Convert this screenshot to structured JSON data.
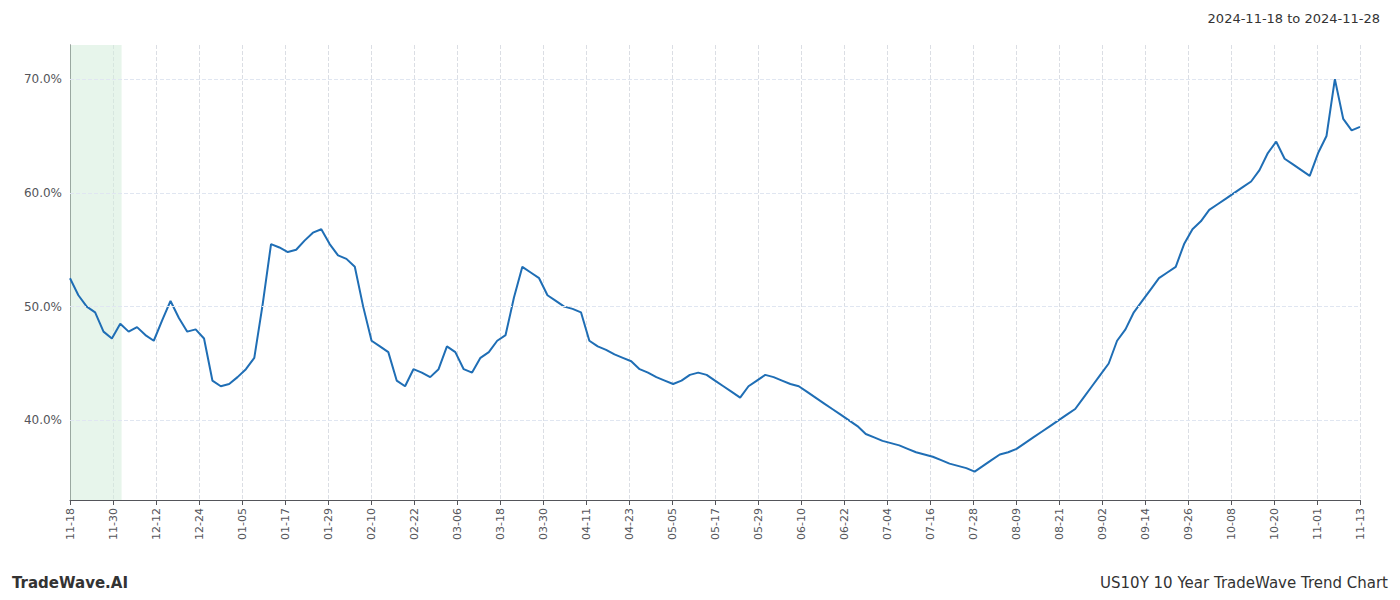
{
  "chart_data": {
    "type": "line",
    "annotations": [
      "2024-11-18 to 2024-11-28",
      "TradeWave.AI",
      "US10Y 10 Year TradeWave Trend Chart"
    ],
    "color": "#1f6eb5",
    "highlight_x": [
      0,
      1.2
    ],
    "highlight_color": "#d4edda",
    "xlim": [
      0,
      30
    ],
    "xticks": [
      {
        "value": 0,
        "label": "11-18"
      },
      {
        "value": 1,
        "label": "11-30"
      },
      {
        "value": 2,
        "label": "12-12"
      },
      {
        "value": 3,
        "label": "12-24"
      },
      {
        "value": 4,
        "label": "01-05"
      },
      {
        "value": 5,
        "label": "01-17"
      },
      {
        "value": 6,
        "label": "01-29"
      },
      {
        "value": 7,
        "label": "02-10"
      },
      {
        "value": 8,
        "label": "02-22"
      },
      {
        "value": 9,
        "label": "03-06"
      },
      {
        "value": 10,
        "label": "03-18"
      },
      {
        "value": 11,
        "label": "03-30"
      },
      {
        "value": 12,
        "label": "04-11"
      },
      {
        "value": 13,
        "label": "04-23"
      },
      {
        "value": 14,
        "label": "05-05"
      },
      {
        "value": 15,
        "label": "05-17"
      },
      {
        "value": 16,
        "label": "05-29"
      },
      {
        "value": 17,
        "label": "06-10"
      },
      {
        "value": 18,
        "label": "06-22"
      },
      {
        "value": 19,
        "label": "07-04"
      },
      {
        "value": 20,
        "label": "07-16"
      },
      {
        "value": 21,
        "label": "07-28"
      },
      {
        "value": 22,
        "label": "08-09"
      },
      {
        "value": 23,
        "label": "08-21"
      },
      {
        "value": 24,
        "label": "09-02"
      },
      {
        "value": 25,
        "label": "09-14"
      },
      {
        "value": 26,
        "label": "09-26"
      },
      {
        "value": 27,
        "label": "10-08"
      },
      {
        "value": 28,
        "label": "10-20"
      },
      {
        "value": 29,
        "label": "11-01"
      },
      {
        "value": 30,
        "label": "11-13"
      }
    ],
    "ylim": [
      33,
      73
    ],
    "yticks": [
      {
        "value": 40.0,
        "label": "40.0%"
      },
      {
        "value": 50.0,
        "label": "50.0%"
      },
      {
        "value": 60.0,
        "label": "60.0%"
      },
      {
        "value": 70.0,
        "label": "70.0%"
      }
    ],
    "grid": true,
    "values": [
      52.5,
      51.0,
      50.0,
      49.5,
      47.8,
      47.2,
      48.5,
      47.8,
      48.2,
      47.5,
      47.0,
      48.8,
      50.5,
      49.0,
      47.8,
      48.0,
      47.2,
      43.5,
      43.0,
      43.2,
      43.8,
      44.5,
      45.5,
      50.2,
      55.5,
      55.2,
      54.8,
      55.0,
      55.8,
      56.5,
      56.8,
      55.5,
      54.5,
      54.2,
      53.5,
      50.0,
      47.0,
      46.5,
      46.0,
      43.5,
      43.0,
      44.5,
      44.2,
      43.8,
      44.5,
      46.5,
      46.0,
      44.5,
      44.2,
      45.5,
      46.0,
      47.0,
      47.5,
      50.8,
      53.5,
      53.0,
      52.5,
      51.0,
      50.5,
      50.0,
      49.8,
      49.5,
      47.0,
      46.5,
      46.2,
      45.8,
      45.5,
      45.2,
      44.5,
      44.2,
      43.8,
      43.5,
      43.2,
      43.5,
      44.0,
      44.2,
      44.0,
      43.5,
      43.0,
      42.5,
      42.0,
      43.0,
      43.5,
      44.0,
      43.8,
      43.5,
      43.2,
      43.0,
      42.5,
      42.0,
      41.5,
      41.0,
      40.5,
      40.0,
      39.5,
      38.8,
      38.5,
      38.2,
      38.0,
      37.8,
      37.5,
      37.2,
      37.0,
      36.8,
      36.5,
      36.2,
      36.0,
      35.8,
      35.5,
      36.0,
      36.5,
      37.0,
      37.2,
      37.5,
      38.0,
      38.5,
      39.0,
      39.5,
      40.0,
      40.5,
      41.0,
      42.0,
      43.0,
      44.0,
      45.0,
      47.0,
      48.0,
      49.5,
      50.5,
      51.5,
      52.5,
      53.0,
      53.5,
      55.5,
      56.8,
      57.5,
      58.5,
      59.0,
      59.5,
      60.0,
      60.5,
      61.0,
      62.0,
      63.5,
      64.5,
      63.0,
      62.5,
      62.0,
      61.5,
      63.5,
      65.0,
      70.0,
      66.5,
      65.5,
      65.8
    ]
  }
}
